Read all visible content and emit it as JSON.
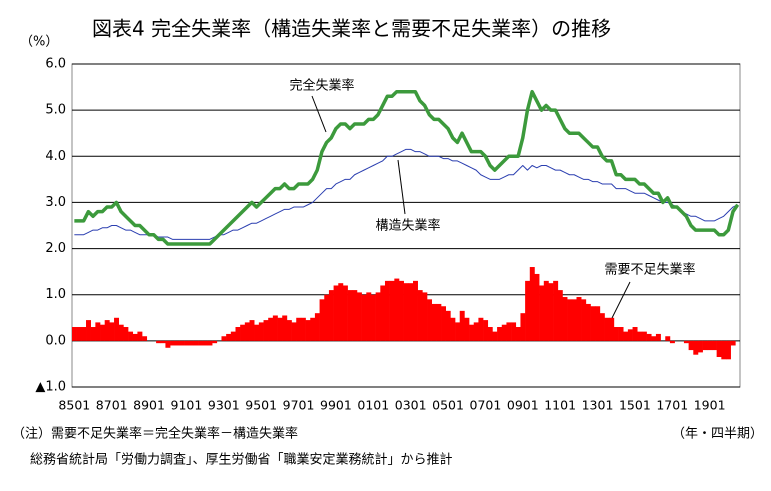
{
  "chart_data": {
    "type": "combo",
    "title": "図表4 完全失業率（構造失業率と需要不足失業率）の推移",
    "y_unit": "（%）",
    "x_unit": "（年・四半期）",
    "note": "（注）需要不足失業率＝完全失業率－構造失業率",
    "source": "総務省統計局「労働力調査」、厚生労働省「職業安定業務統計」から推計",
    "categories": [
      "8501",
      null,
      null,
      null,
      null,
      null,
      null,
      null,
      "8701",
      null,
      null,
      null,
      null,
      null,
      null,
      null,
      "8901",
      null,
      null,
      null,
      null,
      null,
      null,
      null,
      "9101",
      null,
      null,
      null,
      null,
      null,
      null,
      null,
      "9301",
      null,
      null,
      null,
      null,
      null,
      null,
      null,
      "9501",
      null,
      null,
      null,
      null,
      null,
      null,
      null,
      "9701",
      null,
      null,
      null,
      null,
      null,
      null,
      null,
      "9901",
      null,
      null,
      null,
      null,
      null,
      null,
      null,
      "0101",
      null,
      null,
      null,
      null,
      null,
      null,
      null,
      "0301",
      null,
      null,
      null,
      null,
      null,
      null,
      null,
      "0501",
      null,
      null,
      null,
      null,
      null,
      null,
      null,
      "0701",
      null,
      null,
      null,
      null,
      null,
      null,
      null,
      "0901",
      null,
      null,
      null,
      null,
      null,
      null,
      null,
      "1101",
      null,
      null,
      null,
      null,
      null,
      null,
      null,
      "1301",
      null,
      null,
      null,
      null,
      null,
      null,
      null,
      "1501",
      null,
      null,
      null,
      null,
      null,
      null,
      null,
      "1701",
      null,
      null,
      null,
      null,
      null,
      null,
      null,
      "1901",
      null,
      null,
      null,
      null,
      null,
      null
    ],
    "ylim": [
      -1,
      6
    ],
    "yticks": [
      {
        "value": -1,
        "label": "▲1.0"
      },
      {
        "value": 0,
        "label": "0.0"
      },
      {
        "value": 1,
        "label": "1.0"
      },
      {
        "value": 2,
        "label": "2.0"
      },
      {
        "value": 3,
        "label": "3.0"
      },
      {
        "value": 4,
        "label": "4.0"
      },
      {
        "value": 5,
        "label": "5.0"
      },
      {
        "value": 6,
        "label": "6.0"
      }
    ],
    "grid": true,
    "series": [
      {
        "name": "需要不足失業率",
        "type": "bar",
        "color": "#ff0000",
        "values": [
          0.3,
          0.3,
          0.3,
          0.45,
          0.3,
          0.4,
          0.35,
          0.45,
          0.4,
          0.5,
          0.35,
          0.3,
          0.2,
          0.15,
          0.2,
          0.1,
          0.0,
          0.0,
          -0.05,
          -0.05,
          -0.15,
          -0.1,
          -0.1,
          -0.1,
          -0.1,
          -0.1,
          -0.1,
          -0.1,
          -0.1,
          -0.1,
          -0.05,
          0.0,
          0.1,
          0.15,
          0.2,
          0.3,
          0.35,
          0.4,
          0.45,
          0.35,
          0.4,
          0.45,
          0.5,
          0.55,
          0.5,
          0.55,
          0.45,
          0.4,
          0.5,
          0.5,
          0.45,
          0.5,
          0.6,
          0.9,
          1.0,
          1.1,
          1.2,
          1.25,
          1.2,
          1.1,
          1.1,
          1.05,
          1.0,
          1.05,
          1.0,
          1.05,
          1.2,
          1.3,
          1.3,
          1.35,
          1.3,
          1.25,
          1.25,
          1.3,
          1.1,
          1.05,
          0.9,
          0.8,
          0.8,
          0.75,
          0.65,
          0.5,
          0.4,
          0.65,
          0.5,
          0.35,
          0.4,
          0.5,
          0.45,
          0.3,
          0.2,
          0.3,
          0.35,
          0.4,
          0.4,
          0.3,
          0.6,
          1.3,
          1.6,
          1.45,
          1.2,
          1.3,
          1.25,
          1.3,
          1.1,
          0.95,
          0.9,
          0.9,
          0.95,
          0.9,
          0.8,
          0.75,
          0.75,
          0.6,
          0.5,
          0.5,
          0.3,
          0.3,
          0.2,
          0.25,
          0.3,
          0.2,
          0.2,
          0.15,
          0.1,
          0.15,
          0.0,
          0.1,
          -0.05,
          0.0,
          0.0,
          -0.05,
          -0.2,
          -0.3,
          -0.25,
          -0.2,
          -0.2,
          -0.2,
          -0.35,
          -0.4,
          -0.4,
          -0.1,
          0.0
        ]
      },
      {
        "name": "構造失業率",
        "type": "line",
        "color": "#2b3fb0",
        "width": 1,
        "values": [
          2.3,
          2.3,
          2.3,
          2.35,
          2.4,
          2.4,
          2.45,
          2.45,
          2.5,
          2.5,
          2.45,
          2.4,
          2.4,
          2.35,
          2.3,
          2.3,
          2.3,
          2.3,
          2.25,
          2.25,
          2.25,
          2.2,
          2.2,
          2.2,
          2.2,
          2.2,
          2.2,
          2.2,
          2.2,
          2.2,
          2.25,
          2.3,
          2.3,
          2.35,
          2.4,
          2.4,
          2.45,
          2.5,
          2.55,
          2.55,
          2.6,
          2.65,
          2.7,
          2.75,
          2.8,
          2.85,
          2.85,
          2.9,
          2.9,
          2.9,
          2.95,
          3.0,
          3.1,
          3.2,
          3.3,
          3.3,
          3.4,
          3.45,
          3.5,
          3.5,
          3.6,
          3.65,
          3.7,
          3.75,
          3.8,
          3.85,
          3.9,
          4.0,
          4.0,
          4.05,
          4.1,
          4.15,
          4.15,
          4.1,
          4.1,
          4.05,
          4.0,
          4.0,
          4.0,
          3.95,
          3.95,
          3.9,
          3.9,
          3.85,
          3.8,
          3.75,
          3.7,
          3.6,
          3.55,
          3.5,
          3.5,
          3.5,
          3.55,
          3.6,
          3.6,
          3.7,
          3.8,
          3.7,
          3.8,
          3.75,
          3.8,
          3.8,
          3.75,
          3.7,
          3.7,
          3.65,
          3.6,
          3.6,
          3.55,
          3.5,
          3.5,
          3.45,
          3.45,
          3.4,
          3.4,
          3.4,
          3.3,
          3.3,
          3.3,
          3.25,
          3.2,
          3.2,
          3.2,
          3.15,
          3.1,
          3.05,
          3.0,
          3.0,
          2.95,
          2.9,
          2.8,
          2.75,
          2.7,
          2.7,
          2.65,
          2.6,
          2.6,
          2.6,
          2.65,
          2.7,
          2.8,
          2.9,
          2.95
        ]
      },
      {
        "name": "完全失業率",
        "type": "line",
        "color": "#3c9a3c",
        "width": 3.5,
        "values": [
          2.6,
          2.6,
          2.6,
          2.8,
          2.7,
          2.8,
          2.8,
          2.9,
          2.9,
          3.0,
          2.8,
          2.7,
          2.6,
          2.5,
          2.5,
          2.4,
          2.3,
          2.3,
          2.2,
          2.2,
          2.1,
          2.1,
          2.1,
          2.1,
          2.1,
          2.1,
          2.1,
          2.1,
          2.1,
          2.1,
          2.2,
          2.3,
          2.4,
          2.5,
          2.6,
          2.7,
          2.8,
          2.9,
          3.0,
          2.9,
          3.0,
          3.1,
          3.2,
          3.3,
          3.3,
          3.4,
          3.3,
          3.3,
          3.4,
          3.4,
          3.4,
          3.5,
          3.7,
          4.1,
          4.3,
          4.4,
          4.6,
          4.7,
          4.7,
          4.6,
          4.7,
          4.7,
          4.7,
          4.8,
          4.8,
          4.9,
          5.1,
          5.3,
          5.3,
          5.4,
          5.4,
          5.4,
          5.4,
          5.4,
          5.2,
          5.1,
          4.9,
          4.8,
          4.8,
          4.7,
          4.6,
          4.4,
          4.3,
          4.5,
          4.3,
          4.1,
          4.1,
          4.1,
          4.0,
          3.8,
          3.7,
          3.8,
          3.9,
          4.0,
          4.0,
          4.0,
          4.4,
          5.0,
          5.4,
          5.2,
          5.0,
          5.1,
          5.0,
          5.0,
          4.8,
          4.6,
          4.5,
          4.5,
          4.5,
          4.4,
          4.3,
          4.2,
          4.2,
          4.0,
          3.9,
          3.9,
          3.6,
          3.6,
          3.5,
          3.5,
          3.5,
          3.4,
          3.4,
          3.3,
          3.2,
          3.2,
          3.0,
          3.1,
          2.9,
          2.9,
          2.8,
          2.7,
          2.5,
          2.4,
          2.4,
          2.4,
          2.4,
          2.4,
          2.3,
          2.3,
          2.4,
          2.8,
          2.95
        ]
      }
    ]
  }
}
